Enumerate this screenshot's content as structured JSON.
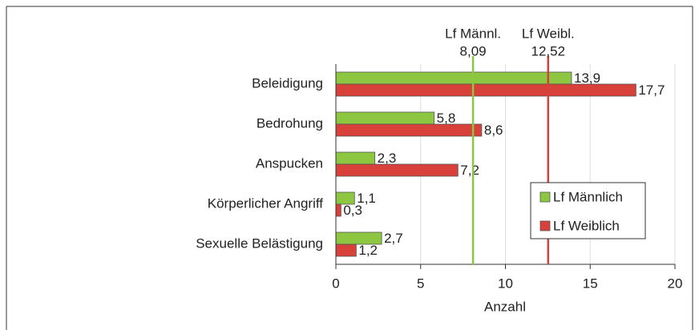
{
  "chart_data": {
    "type": "bar",
    "orientation": "horizontal",
    "categories": [
      "Beleidigung",
      "Bedrohung",
      "Anspucken",
      "Körperlicher Angriff",
      "Sexuelle Belästigung"
    ],
    "series": [
      {
        "name": "Lf Männlich",
        "color": "#8dc641",
        "values": [
          13.9,
          5.8,
          2.3,
          1.1,
          2.7
        ],
        "value_labels": [
          "13,9",
          "5,8",
          "2,3",
          "1,1",
          "2,7"
        ]
      },
      {
        "name": "Lf Weiblich",
        "color": "#d8403a",
        "values": [
          17.7,
          8.6,
          7.2,
          0.3,
          1.2
        ],
        "value_labels": [
          "17,7",
          "8,6",
          "7,2",
          "0,3",
          "1,2"
        ]
      }
    ],
    "xlabel": "Anzahl",
    "xlim": [
      0,
      20
    ],
    "xticks": [
      0,
      5,
      10,
      15,
      20
    ],
    "grid": true,
    "annotations": [
      {
        "name": "Lf Männl.",
        "value": 8.09,
        "label": "8,09",
        "color": "#8dc641"
      },
      {
        "name": "Lf Weibl.",
        "value": 12.52,
        "label": "12,52",
        "color": "#d8403a"
      }
    ]
  }
}
